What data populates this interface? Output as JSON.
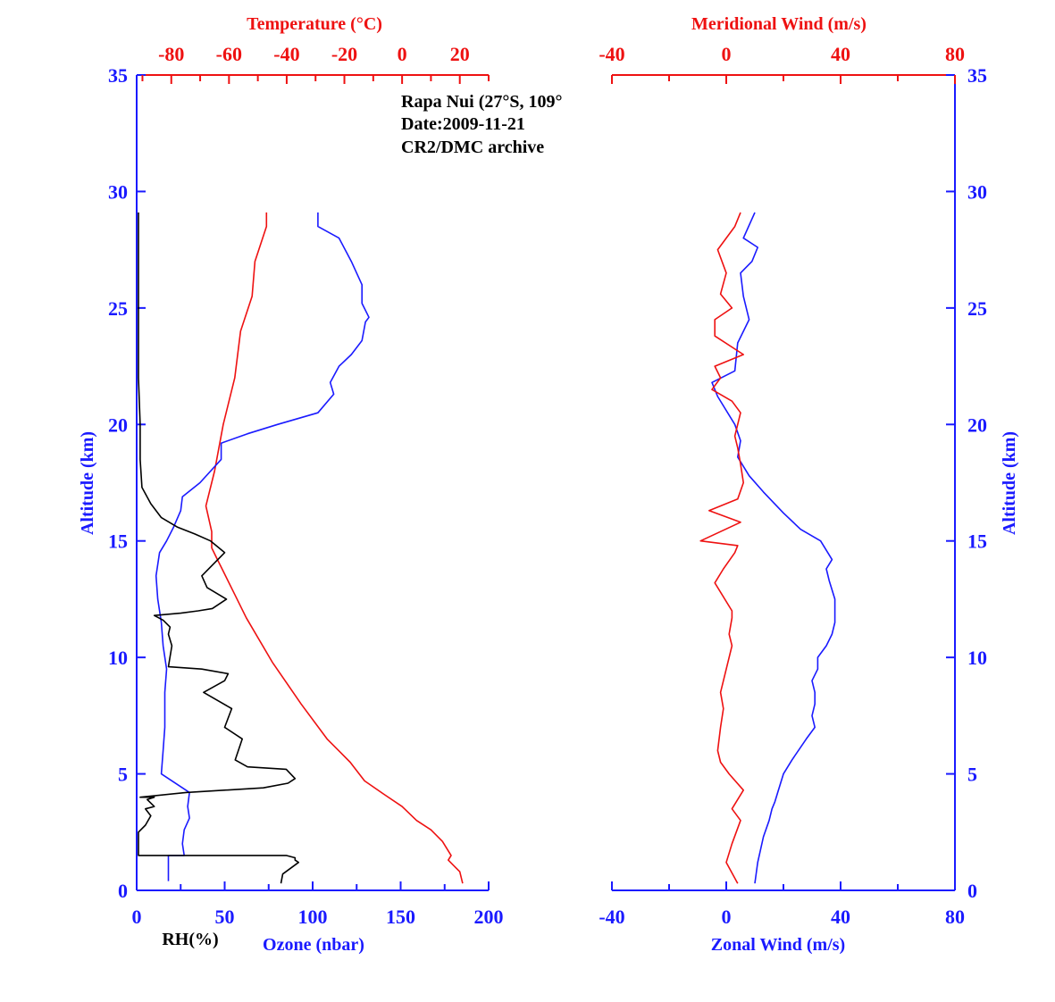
{
  "colors": {
    "blue": "#1a1aff",
    "red": "#ee1111",
    "black": "#000000"
  },
  "annotation": [
    "Rapa Nui (27°S, 109°",
    "Date:2009-11-21",
    "CR2/DMC archive"
  ],
  "chart_data": [
    {
      "type": "line",
      "panel": "left",
      "labels": {
        "top": "Temperature (°C)",
        "bottom_rh": "RH(%)",
        "bottom_ozone": "Ozone (nbar)",
        "left": "Altitude (km)"
      },
      "y_axis": {
        "label": "Altitude (km)",
        "range": [
          0,
          35
        ],
        "ticks": [
          "0",
          "5",
          "10",
          "15",
          "20",
          "25",
          "30",
          "35"
        ]
      },
      "bottom_axis": {
        "range": [
          0,
          200
        ],
        "ticks": [
          "0",
          "50",
          "100",
          "150",
          "200"
        ]
      },
      "top_axis": {
        "range": [
          -92,
          30
        ],
        "ticks": [
          "-80",
          "-60",
          "-40",
          "-20",
          "0",
          "20"
        ]
      },
      "series": [
        {
          "name": "Temperature (°C)",
          "axis": "top",
          "color": "#ee1111",
          "x": [
            21,
            20,
            16,
            17,
            14,
            10,
            5,
            0,
            -6,
            -13,
            -18,
            -26,
            -35,
            -45,
            -54,
            -58,
            -62,
            -64,
            -66,
            -66,
            -68,
            -65,
            -62,
            -58,
            -56,
            -52,
            -51,
            -47,
            -47
          ],
          "y": [
            0.3,
            0.8,
            1.3,
            1.5,
            2.1,
            2.6,
            3.0,
            3.6,
            4.1,
            4.7,
            5.5,
            6.5,
            8.0,
            9.8,
            11.7,
            12.7,
            13.7,
            14.2,
            14.7,
            15.4,
            16.5,
            18.0,
            20.0,
            22.0,
            24.0,
            25.5,
            27.0,
            28.5,
            29.1
          ]
        },
        {
          "name": "Ozone (nbar)",
          "axis": "bottom",
          "color": "#1a1aff",
          "x": [
            18,
            18,
            27,
            26,
            27,
            30,
            29,
            30,
            28,
            14,
            15,
            16,
            16,
            17,
            15,
            14,
            12,
            11,
            13,
            17,
            21,
            25,
            26,
            36,
            48,
            48,
            48,
            63,
            80,
            103,
            112,
            110,
            115,
            122,
            128,
            130,
            132,
            128,
            128,
            122,
            115,
            103,
            103
          ],
          "y": [
            0.4,
            1.5,
            1.5,
            2.0,
            2.6,
            3.1,
            3.6,
            4.2,
            4.3,
            5.0,
            6.0,
            7.0,
            8.5,
            9.5,
            10.5,
            11.5,
            12.5,
            13.5,
            14.5,
            15.0,
            15.6,
            16.3,
            16.9,
            17.5,
            18.5,
            19.0,
            19.2,
            19.6,
            20.0,
            20.5,
            21.3,
            21.8,
            22.5,
            23.0,
            23.6,
            24.4,
            24.6,
            25.2,
            26.0,
            27.0,
            28.0,
            28.5,
            29.1
          ]
        },
        {
          "name": "RH(%)",
          "axis": "bottom",
          "color": "#000000",
          "x": [
            82,
            83,
            92,
            90,
            90,
            85,
            1,
            1,
            5,
            8,
            5,
            10,
            6,
            10,
            2,
            28,
            72,
            86,
            90,
            85,
            63,
            56,
            60,
            50,
            54,
            38,
            50,
            52,
            37,
            18,
            20,
            18,
            19,
            15,
            10,
            25,
            35,
            43,
            51,
            40,
            37,
            50,
            42,
            33,
            23,
            14,
            8,
            3,
            2,
            2,
            1,
            1
          ],
          "y": [
            0.3,
            0.7,
            1.2,
            1.3,
            1.4,
            1.5,
            1.5,
            2.5,
            2.8,
            3.2,
            3.5,
            3.6,
            3.9,
            4.0,
            4.0,
            4.2,
            4.4,
            4.6,
            4.8,
            5.2,
            5.3,
            5.6,
            6.5,
            7.0,
            7.8,
            8.5,
            9.0,
            9.3,
            9.5,
            9.6,
            10.5,
            11.0,
            11.3,
            11.6,
            11.8,
            11.9,
            12.0,
            12.1,
            12.5,
            13.0,
            13.5,
            14.5,
            15.0,
            15.3,
            15.6,
            16.0,
            16.6,
            17.3,
            18.5,
            20.0,
            22.0,
            29.1
          ]
        }
      ]
    },
    {
      "type": "line",
      "panel": "right",
      "labels": {
        "top": "Meridional Wind (m/s)",
        "bottom": "Zonal Wind (m/s)",
        "right": "Altitude (km)"
      },
      "y_axis": {
        "label": "Altitude (km)",
        "range": [
          0,
          35
        ],
        "ticks": [
          "0",
          "5",
          "10",
          "15",
          "20",
          "25",
          "30",
          "35"
        ]
      },
      "bottom_axis": {
        "range": [
          -40,
          80
        ],
        "ticks": [
          "-40",
          "0",
          "40",
          "80"
        ]
      },
      "top_axis": {
        "range": [
          -40,
          80
        ],
        "ticks": [
          "-40",
          "0",
          "40",
          "80"
        ]
      },
      "series": [
        {
          "name": "Zonal Wind (m/s)",
          "axis": "bottom",
          "color": "#1a1aff",
          "x": [
            10,
            11,
            13,
            15,
            16,
            17,
            18,
            20,
            23,
            28,
            31,
            30,
            31,
            31,
            30,
            32,
            32,
            35,
            37,
            38,
            38,
            36,
            35,
            37,
            33,
            26,
            20,
            13,
            8,
            4,
            5,
            3,
            -3,
            -5,
            3,
            4,
            8,
            6,
            5,
            9,
            11,
            6,
            10
          ],
          "y": [
            0.3,
            1.2,
            2.3,
            3.0,
            3.5,
            3.8,
            4.2,
            5.0,
            5.6,
            6.5,
            7.0,
            7.5,
            8.0,
            8.5,
            9.0,
            9.5,
            10.0,
            10.5,
            11.0,
            11.5,
            12.5,
            13.3,
            13.8,
            14.2,
            15.0,
            15.5,
            16.2,
            17.1,
            17.8,
            18.6,
            19.3,
            20.0,
            21.2,
            21.8,
            22.3,
            23.5,
            24.5,
            25.5,
            26.5,
            27.0,
            27.6,
            28.0,
            29.1
          ]
        },
        {
          "name": "Meridional Wind (m/s)",
          "axis": "top",
          "color": "#ee1111",
          "x": [
            4,
            0,
            2,
            5,
            2,
            6,
            1,
            -2,
            -3,
            -2,
            -1,
            -2,
            0,
            2,
            1,
            2,
            2,
            -4,
            -1,
            3,
            4,
            -9,
            5,
            -6,
            4,
            6,
            5,
            4,
            3,
            5,
            2,
            -5,
            -2,
            -4,
            6,
            -4,
            -4,
            2,
            -2,
            0,
            -3,
            3,
            5
          ],
          "y": [
            0.3,
            1.2,
            2.0,
            3.0,
            3.5,
            4.3,
            5.0,
            5.5,
            6.0,
            7.0,
            7.8,
            8.5,
            9.5,
            10.5,
            11.0,
            11.7,
            12.0,
            13.2,
            13.8,
            14.5,
            14.8,
            15.0,
            15.8,
            16.3,
            16.8,
            17.5,
            18.3,
            19.0,
            19.5,
            20.5,
            21.0,
            21.5,
            22.0,
            22.5,
            23.0,
            23.8,
            24.5,
            25.0,
            25.6,
            26.5,
            27.5,
            28.5,
            29.1
          ]
        }
      ]
    }
  ]
}
